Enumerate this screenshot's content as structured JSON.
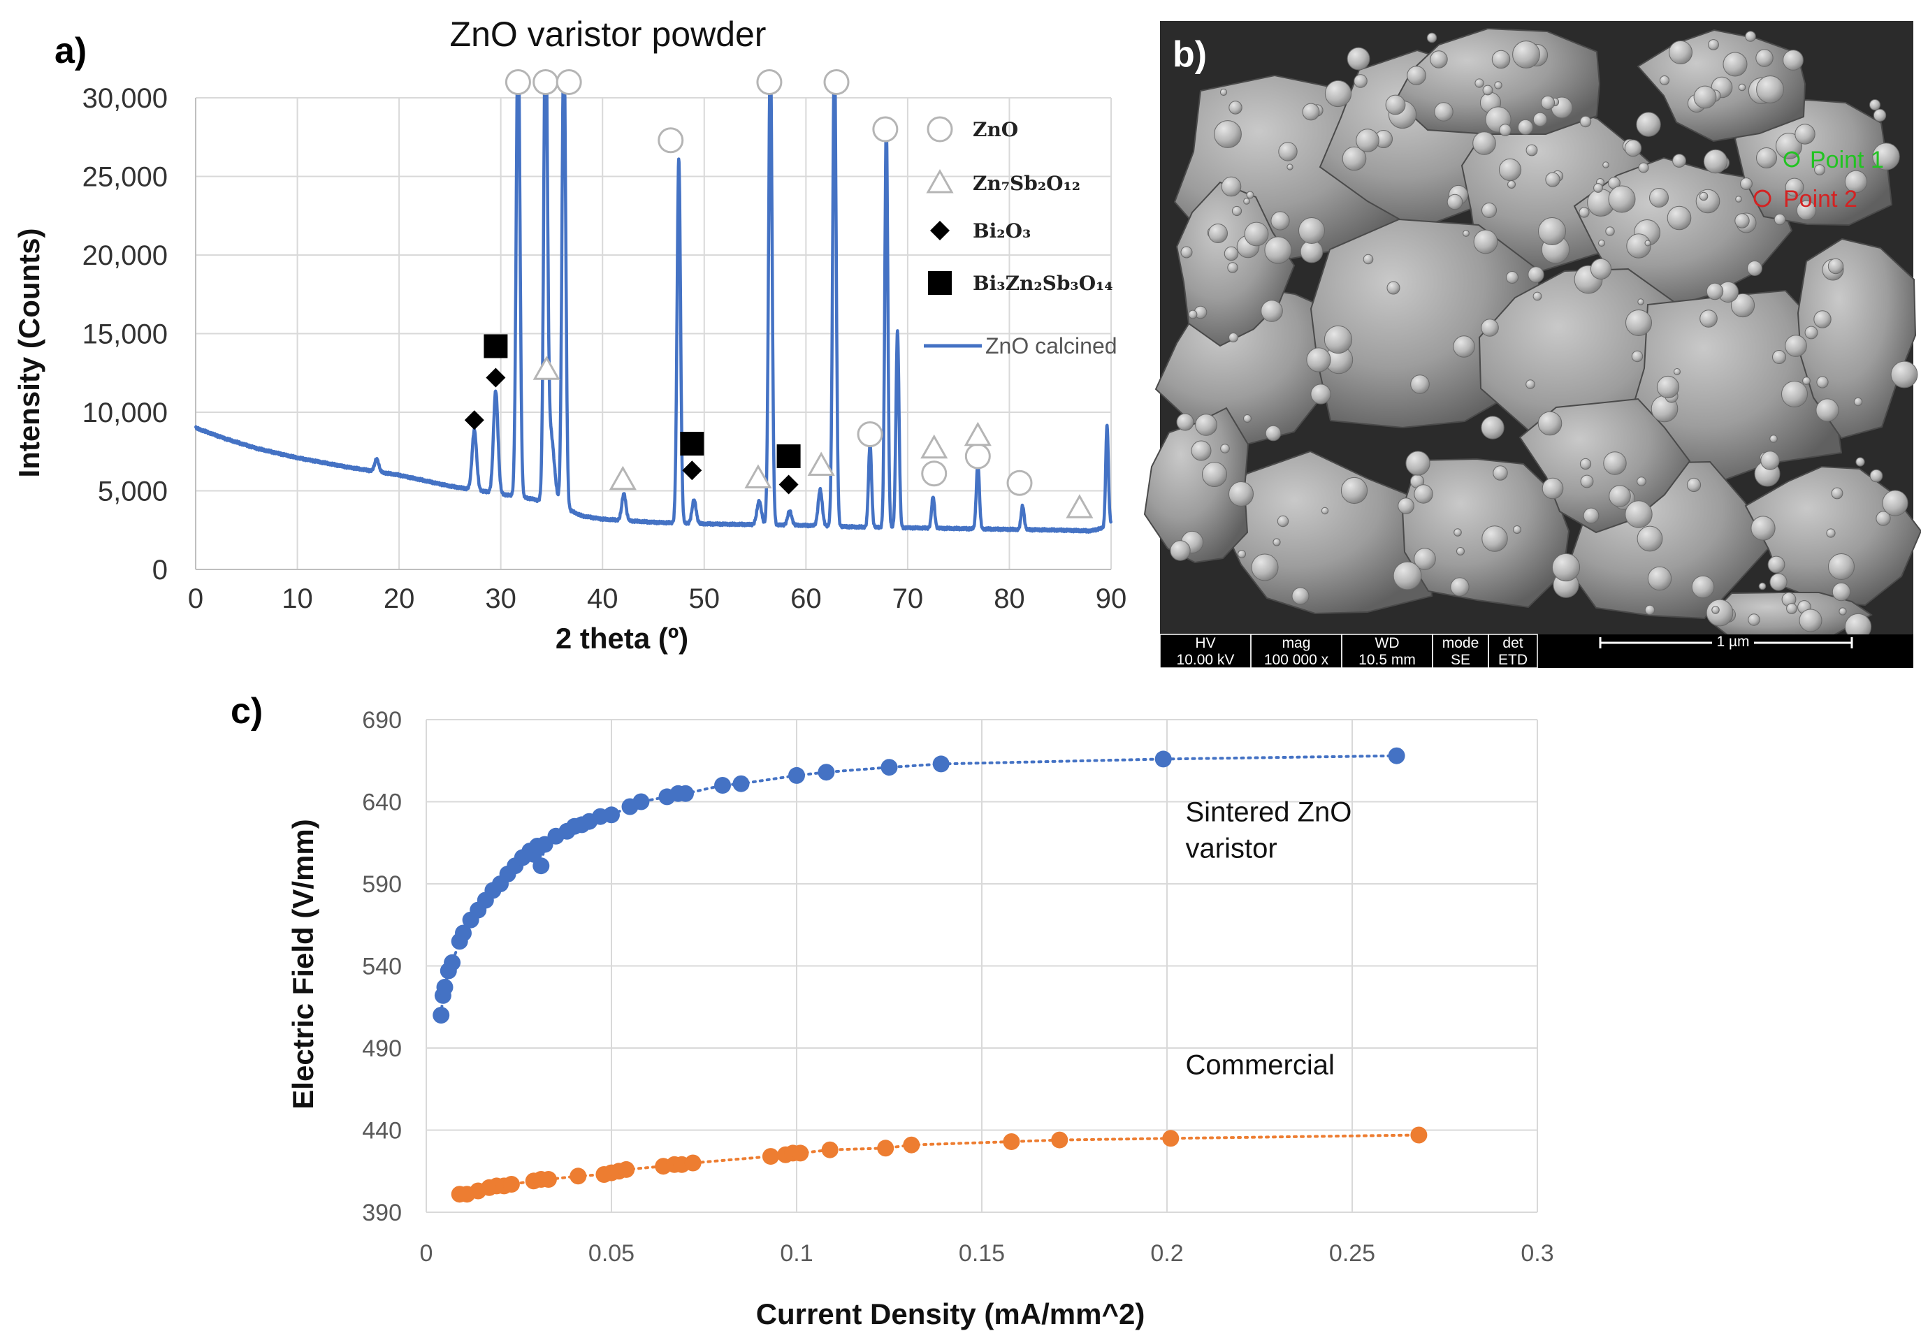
{
  "panel_labels": {
    "a": "a)",
    "b": "b)",
    "c": "c)"
  },
  "colors": {
    "xrd_line": "#4472C4",
    "sintered": "#4472C4",
    "commercial": "#ED7D31",
    "grid": "#d9d9d9",
    "point1": "#22c322",
    "point2": "#d42222"
  },
  "chart_data": [
    {
      "type": "line",
      "panel": "a",
      "title": "ZnO varistor powder",
      "xlabel": "2 theta (º)",
      "ylabel": "Intensity (Counts)",
      "xlim": [
        0,
        90
      ],
      "ylim": [
        0,
        30000
      ],
      "x_ticks": [
        0,
        10,
        20,
        30,
        40,
        50,
        60,
        70,
        80,
        90
      ],
      "y_ticks": [
        0,
        5000,
        10000,
        15000,
        20000,
        25000,
        30000
      ],
      "y_tick_labels": [
        "0",
        "5,000",
        "10,000",
        "15,000",
        "20,000",
        "25,000",
        "30,000"
      ],
      "grid": true,
      "series": [
        {
          "name": "ZnO calcined",
          "baseline": [
            [
              0,
              9000
            ],
            [
              3,
              8300
            ],
            [
              6,
              7700
            ],
            [
              10,
              7100
            ],
            [
              15,
              6500
            ],
            [
              20,
              6000
            ],
            [
              25,
              5300
            ],
            [
              30,
              4800
            ],
            [
              33,
              4500
            ],
            [
              36,
              4000
            ],
            [
              38,
              3400
            ],
            [
              40,
              3200
            ],
            [
              45,
              3000
            ],
            [
              50,
              2900
            ],
            [
              55,
              2850
            ],
            [
              60,
              2800
            ],
            [
              65,
              2700
            ],
            [
              70,
              2650
            ],
            [
              75,
              2600
            ],
            [
              80,
              2550
            ],
            [
              85,
              2500
            ],
            [
              88,
              2450
            ],
            [
              89.6,
              2700
            ],
            [
              90,
              3000
            ]
          ],
          "peaks": [
            [
              17.8,
              800,
              0.2
            ],
            [
              27.4,
              3800,
              0.22
            ],
            [
              29.5,
              6500,
              0.22
            ],
            [
              31.7,
              30500,
              0.18
            ],
            [
              34.4,
              30500,
              0.18
            ],
            [
              34.9,
              4500,
              0.35
            ],
            [
              36.2,
              30500,
              0.18
            ],
            [
              42.1,
              1700,
              0.2
            ],
            [
              47.5,
              23200,
              0.17
            ],
            [
              49.0,
              1500,
              0.2
            ],
            [
              55.4,
              1500,
              0.22
            ],
            [
              56.5,
              30500,
              0.17
            ],
            [
              58.4,
              900,
              0.2
            ],
            [
              61.4,
              2300,
              0.2
            ],
            [
              62.8,
              30500,
              0.17
            ],
            [
              66.3,
              5300,
              0.15
            ],
            [
              67.9,
              25500,
              0.15
            ],
            [
              69.0,
              12500,
              0.15
            ],
            [
              72.5,
              2000,
              0.15
            ],
            [
              76.9,
              4200,
              0.15
            ],
            [
              81.3,
              1500,
              0.15
            ],
            [
              89.6,
              6500,
              0.13
            ]
          ]
        }
      ],
      "legend": [
        {
          "symbol": "circle",
          "label": "ZnO"
        },
        {
          "symbol": "triangle",
          "label": "Zn₇Sb₂O₁₂"
        },
        {
          "symbol": "diamond",
          "label": "Bi₂O₃"
        },
        {
          "symbol": "square",
          "label": "Bi₃Zn₂Sb₃O₁₄"
        },
        {
          "symbol": "line",
          "label": "ZnO calcined"
        }
      ],
      "legend_position": "top-right",
      "phase_markers": {
        "circle": [
          [
            31.7,
            31000
          ],
          [
            34.4,
            31000
          ],
          [
            36.7,
            31000
          ],
          [
            46.7,
            27300
          ],
          [
            56.4,
            31000
          ],
          [
            63.0,
            31000
          ],
          [
            67.8,
            28000
          ],
          [
            66.3,
            8600
          ],
          [
            72.6,
            6100
          ],
          [
            76.9,
            7200
          ],
          [
            81.0,
            5500
          ]
        ],
        "triangle": [
          [
            34.5,
            12700
          ],
          [
            42.0,
            5700
          ],
          [
            55.3,
            5800
          ],
          [
            61.5,
            6600
          ],
          [
            72.6,
            7700
          ],
          [
            76.9,
            8500
          ],
          [
            86.9,
            3900
          ]
        ],
        "diamond": [
          [
            27.4,
            9500
          ],
          [
            29.5,
            12200
          ],
          [
            48.8,
            6300
          ],
          [
            58.3,
            5400
          ]
        ],
        "square": [
          [
            29.5,
            14200
          ],
          [
            48.8,
            8000
          ],
          [
            58.3,
            7200
          ]
        ]
      }
    },
    {
      "type": "scatter",
      "panel": "c",
      "xlabel": "Current Density (mA/mm^2)",
      "ylabel": "Electric Field (V/mm)",
      "xlim": [
        0,
        0.3
      ],
      "ylim": [
        390,
        690
      ],
      "x_ticks": [
        0,
        0.05,
        0.1,
        0.15,
        0.2,
        0.25,
        0.3
      ],
      "x_tick_labels": [
        "0",
        "0.05",
        "0.1",
        "0.15",
        "0.2",
        "0.25",
        "0.3"
      ],
      "y_ticks": [
        390,
        440,
        490,
        540,
        590,
        640,
        690
      ],
      "grid": true,
      "line_style": "dotted",
      "series": [
        {
          "name": "Sintered ZnO varistor",
          "color": "#4472C4",
          "x": [
            0.004,
            0.0045,
            0.005,
            0.006,
            0.007,
            0.009,
            0.01,
            0.012,
            0.014,
            0.016,
            0.018,
            0.02,
            0.022,
            0.024,
            0.026,
            0.028,
            0.029,
            0.03,
            0.031,
            0.032,
            0.035,
            0.038,
            0.04,
            0.042,
            0.044,
            0.047,
            0.05,
            0.055,
            0.058,
            0.065,
            0.068,
            0.07,
            0.08,
            0.085,
            0.1,
            0.108,
            0.125,
            0.139,
            0.199,
            0.262
          ],
          "y": [
            510,
            522,
            527,
            537,
            542,
            555,
            560,
            568,
            574,
            580,
            586,
            590,
            596,
            601,
            606,
            610,
            608,
            613,
            601,
            614,
            619,
            622,
            625,
            626,
            628,
            631,
            632,
            637,
            640,
            643,
            645,
            645,
            650,
            651,
            656,
            658,
            661,
            663,
            666,
            668
          ]
        },
        {
          "name": "Commercial",
          "color": "#ED7D31",
          "x": [
            0.009,
            0.011,
            0.014,
            0.017,
            0.019,
            0.021,
            0.023,
            0.029,
            0.031,
            0.033,
            0.041,
            0.048,
            0.05,
            0.052,
            0.054,
            0.064,
            0.067,
            0.069,
            0.072,
            0.093,
            0.097,
            0.099,
            0.101,
            0.109,
            0.124,
            0.131,
            0.158,
            0.171,
            0.201,
            0.268
          ],
          "y": [
            401,
            401,
            403,
            405,
            406,
            406,
            407,
            409,
            410,
            410,
            412,
            413,
            414,
            415,
            416,
            418,
            419,
            419,
            420,
            424,
            425,
            426,
            426,
            428,
            429,
            431,
            433,
            434,
            435,
            437
          ]
        }
      ],
      "annotations": [
        {
          "lines": [
            "Sintered ZnO",
            "varistor"
          ],
          "x": 0.205,
          "y": 628
        },
        {
          "lines": [
            "Commercial"
          ],
          "x": 0.205,
          "y": 474
        }
      ]
    }
  ],
  "sem": {
    "point_labels": [
      "Point 1",
      "Point 2"
    ],
    "info_bar": {
      "columns": [
        {
          "label": "HV",
          "value": "10.00 kV"
        },
        {
          "label": "mag",
          "value": "100 000 x"
        },
        {
          "label": "WD",
          "value": "10.5 mm"
        },
        {
          "label": "mode",
          "value": "SE"
        },
        {
          "label": "det",
          "value": "ETD"
        }
      ],
      "scale_bar": "1 µm"
    }
  }
}
